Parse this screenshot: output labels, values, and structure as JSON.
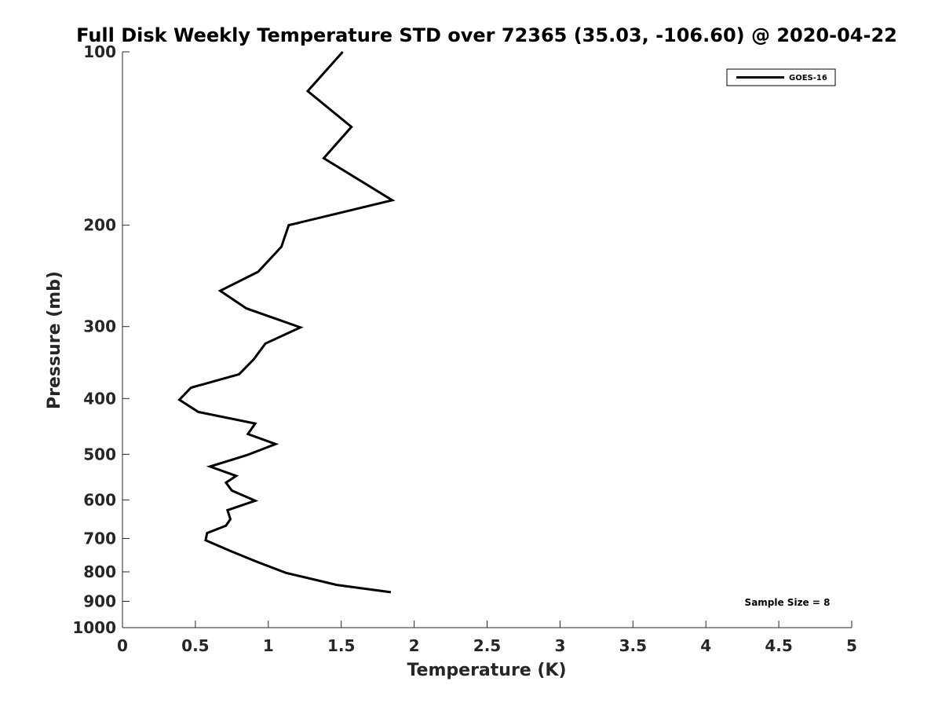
{
  "chart_data": {
    "type": "line",
    "title": "Full Disk Weekly Temperature STD over 72365 (35.03, -106.60) @ 2020-04-22",
    "xlabel": "Temperature (K)",
    "ylabel": "Pressure (mb)",
    "xlim": [
      0,
      5
    ],
    "ylim": [
      100,
      1000
    ],
    "y_scale": "log",
    "y_reversed": true,
    "x_ticks": [
      "0",
      "0.5",
      "1",
      "1.5",
      "2",
      "2.5",
      "3",
      "3.5",
      "4",
      "4.5",
      "5"
    ],
    "y_ticks": [
      "100",
      "200",
      "300",
      "400",
      "500",
      "600",
      "700",
      "800",
      "900",
      "1000"
    ],
    "grid": false,
    "legend_position": "top-right",
    "series": [
      {
        "name": "GOES-16",
        "color": "#000000",
        "points": [
          {
            "x": 1.51,
            "y": 100
          },
          {
            "x": 1.27,
            "y": 117
          },
          {
            "x": 1.57,
            "y": 135
          },
          {
            "x": 1.38,
            "y": 153
          },
          {
            "x": 1.85,
            "y": 181
          },
          {
            "x": 1.14,
            "y": 200
          },
          {
            "x": 1.09,
            "y": 218
          },
          {
            "x": 0.93,
            "y": 241
          },
          {
            "x": 0.67,
            "y": 260
          },
          {
            "x": 0.85,
            "y": 279
          },
          {
            "x": 1.22,
            "y": 301
          },
          {
            "x": 0.98,
            "y": 321
          },
          {
            "x": 0.9,
            "y": 342
          },
          {
            "x": 0.8,
            "y": 363
          },
          {
            "x": 0.47,
            "y": 383
          },
          {
            "x": 0.39,
            "y": 402
          },
          {
            "x": 0.52,
            "y": 422
          },
          {
            "x": 0.91,
            "y": 442
          },
          {
            "x": 0.86,
            "y": 461
          },
          {
            "x": 1.05,
            "y": 480
          },
          {
            "x": 0.85,
            "y": 502
          },
          {
            "x": 0.6,
            "y": 525
          },
          {
            "x": 0.78,
            "y": 545
          },
          {
            "x": 0.71,
            "y": 560
          },
          {
            "x": 0.75,
            "y": 578
          },
          {
            "x": 0.91,
            "y": 602
          },
          {
            "x": 0.72,
            "y": 625
          },
          {
            "x": 0.74,
            "y": 648
          },
          {
            "x": 0.71,
            "y": 665
          },
          {
            "x": 0.58,
            "y": 685
          },
          {
            "x": 0.57,
            "y": 705
          },
          {
            "x": 0.74,
            "y": 736
          },
          {
            "x": 0.92,
            "y": 768
          },
          {
            "x": 1.12,
            "y": 803
          },
          {
            "x": 1.47,
            "y": 843
          },
          {
            "x": 1.84,
            "y": 868
          }
        ]
      }
    ],
    "annotation": "Sample Size = 8"
  }
}
